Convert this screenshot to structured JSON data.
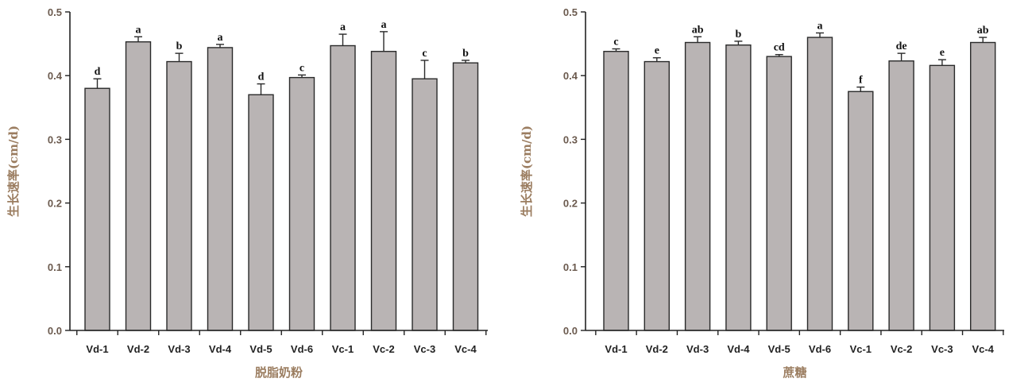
{
  "colors": {
    "bar_fill": "#b9b4b4",
    "bar_stroke": "#2a2a2a",
    "axis": "#222222",
    "tick_text": "#6b5a4e",
    "axis_title": "#9b7d60"
  },
  "chart_data": [
    {
      "type": "bar",
      "xlabel": "脱脂奶粉",
      "ylabel": "生长速率(cm/d)",
      "ylim": [
        0,
        0.5
      ],
      "yticks": [
        "0.0",
        "0.1",
        "0.2",
        "0.3",
        "0.4",
        "0.5"
      ],
      "categories": [
        "Vd-1",
        "Vd-2",
        "Vd-3",
        "Vd-4",
        "Vd-5",
        "Vd-6",
        "Vc-1",
        "Vc-2",
        "Vc-3",
        "Vc-4"
      ],
      "values": [
        0.38,
        0.453,
        0.422,
        0.444,
        0.37,
        0.397,
        0.447,
        0.438,
        0.395,
        0.42
      ],
      "errors": [
        0.015,
        0.008,
        0.013,
        0.005,
        0.017,
        0.004,
        0.018,
        0.031,
        0.029,
        0.004
      ],
      "labels": [
        "d",
        "a",
        "b",
        "a",
        "d",
        "c",
        "a",
        "a",
        "c",
        "b"
      ]
    },
    {
      "type": "bar",
      "xlabel": "蔗糖",
      "ylabel": "生长速率(cm/d)",
      "ylim": [
        0,
        0.5
      ],
      "yticks": [
        "0.0",
        "0.1",
        "0.2",
        "0.3",
        "0.4",
        "0.5"
      ],
      "categories": [
        "Vd-1",
        "Vd-2",
        "Vd-3",
        "Vd-4",
        "Vd-5",
        "Vd-6",
        "Vc-1",
        "Vc-2",
        "Vc-3",
        "Vc-4"
      ],
      "values": [
        0.438,
        0.422,
        0.452,
        0.448,
        0.43,
        0.46,
        0.375,
        0.423,
        0.416,
        0.452
      ],
      "errors": [
        0.004,
        0.006,
        0.009,
        0.006,
        0.003,
        0.007,
        0.007,
        0.012,
        0.009,
        0.008
      ],
      "labels": [
        "c",
        "e",
        "ab",
        "b",
        "cd",
        "a",
        "f",
        "de",
        "e",
        "ab"
      ]
    }
  ]
}
